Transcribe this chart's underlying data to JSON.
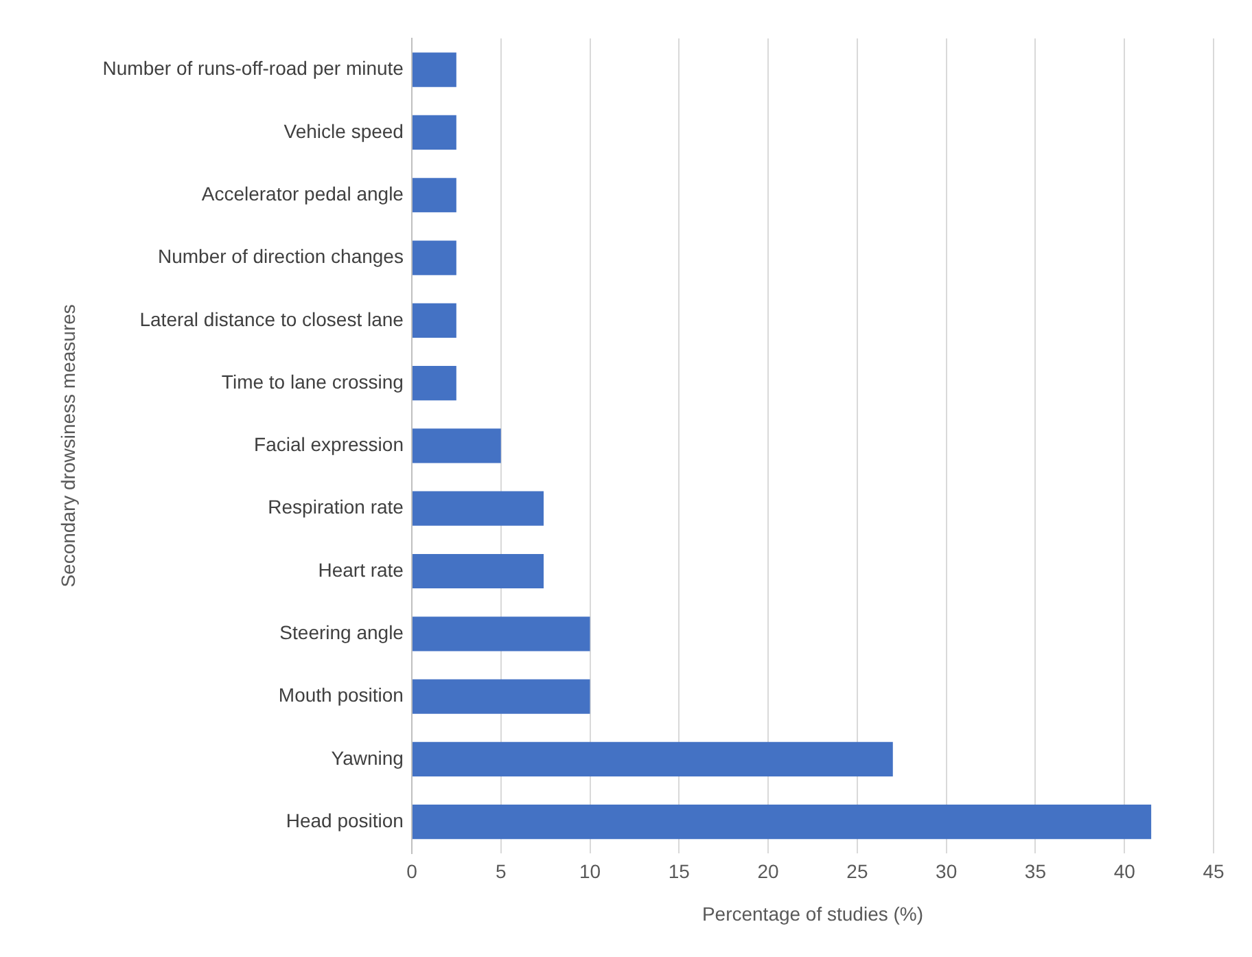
{
  "chart_data": {
    "type": "bar",
    "orientation": "horizontal",
    "xlabel": "Percentage of studies (%)",
    "ylabel": "Secondary drowsiness measures",
    "categories": [
      "Number of runs-off-road per minute",
      "Vehicle speed",
      "Accelerator pedal angle",
      "Number of direction changes",
      "Lateral distance to closest lane",
      "Time to lane crossing",
      "Facial expression",
      "Respiration rate",
      "Heart rate",
      "Steering angle",
      "Mouth position",
      "Yawning",
      "Head position"
    ],
    "values": [
      2.5,
      2.5,
      2.5,
      2.5,
      2.5,
      2.5,
      5,
      7.4,
      7.4,
      10,
      10,
      27,
      41.5
    ],
    "color": "#4472c4",
    "xlim": [
      0,
      45
    ],
    "xticks": [
      0,
      5,
      10,
      15,
      20,
      25,
      30,
      35,
      40,
      45
    ],
    "grid": "x",
    "legend": false
  }
}
